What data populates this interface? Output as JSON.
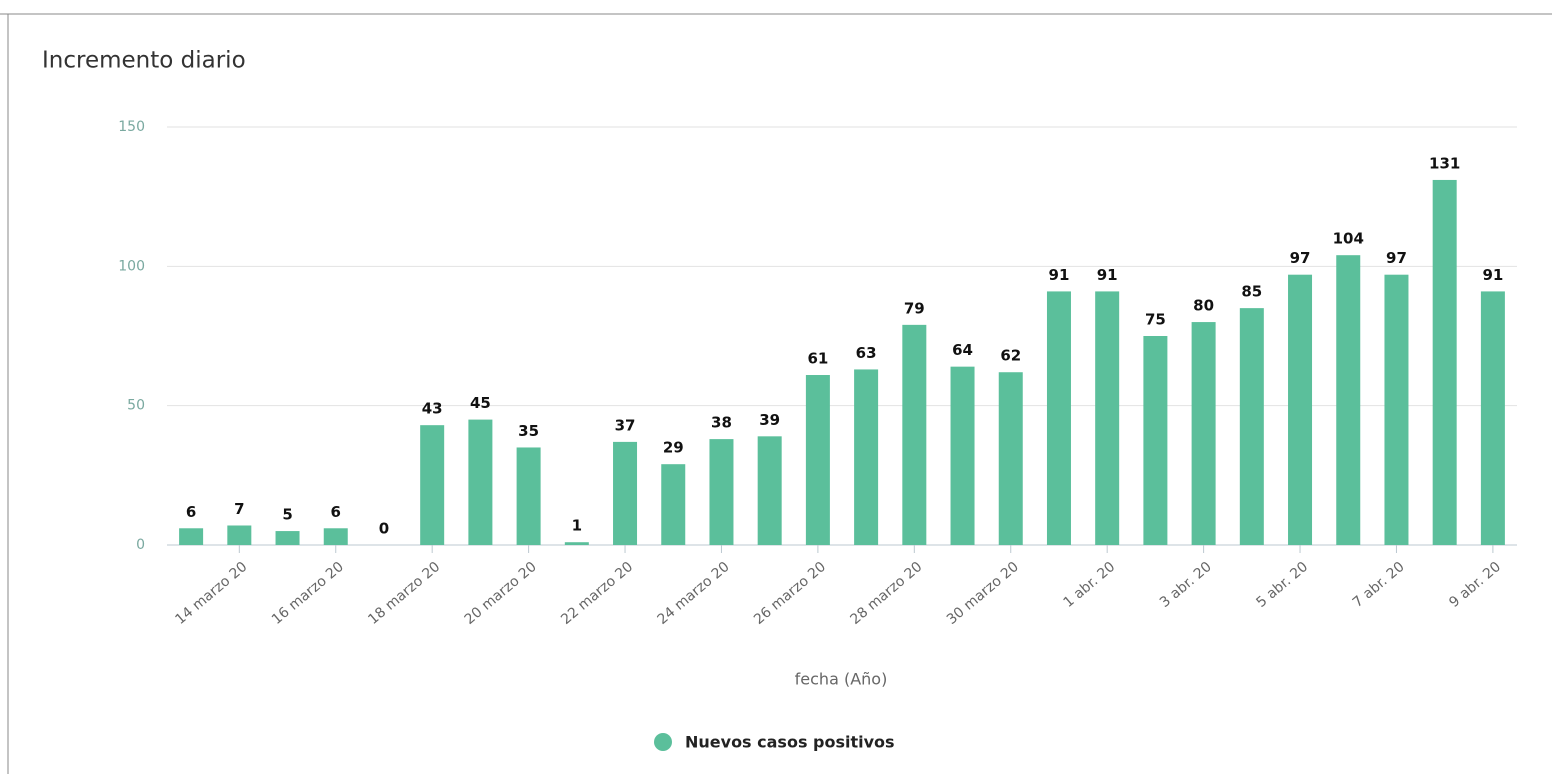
{
  "chart_data": {
    "type": "bar",
    "title": "Incremento diario",
    "categories": [
      null,
      "14 marzo 20",
      null,
      "16 marzo 20",
      null,
      "18 marzo 20",
      null,
      "20 marzo 20",
      null,
      "22 marzo 20",
      null,
      "24 marzo 20",
      null,
      "26 marzo 20",
      null,
      "28 marzo 20",
      null,
      "30 marzo 20",
      null,
      "1 abr. 20",
      null,
      "3 abr. 20",
      null,
      "5 abr. 20",
      null,
      "7 abr. 20",
      null,
      "9 abr. 20"
    ],
    "series": [
      {
        "name": "Nuevos casos positivos",
        "color": "#5bbf9b",
        "values": [
          6,
          7,
          5,
          6,
          0,
          43,
          45,
          35,
          1,
          37,
          29,
          38,
          39,
          61,
          63,
          79,
          64,
          62,
          91,
          91,
          75,
          80,
          85,
          97,
          104,
          97,
          131,
          91
        ]
      }
    ],
    "x_label": "fecha (Año)",
    "ylim": [
      0,
      150
    ],
    "yticks": [
      0,
      50,
      100,
      150
    ],
    "grid": true
  }
}
